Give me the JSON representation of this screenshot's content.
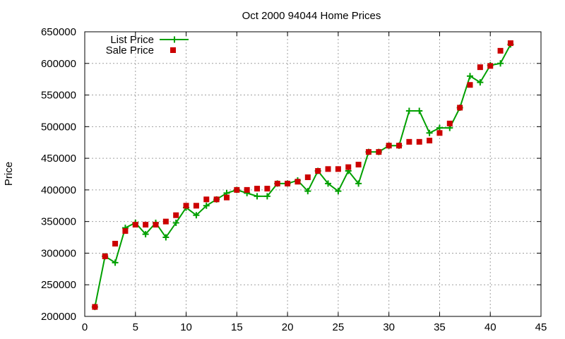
{
  "chart_data": {
    "type": "line",
    "title": "Oct 2000 94044 Home Prices",
    "xlabel": "",
    "ylabel": "Price",
    "xlim": [
      0,
      45
    ],
    "ylim": [
      200000,
      650000
    ],
    "x_ticks": [
      0,
      5,
      10,
      15,
      20,
      25,
      30,
      35,
      40,
      45
    ],
    "y_ticks": [
      200000,
      250000,
      300000,
      350000,
      400000,
      450000,
      500000,
      550000,
      600000,
      650000
    ],
    "grid": true,
    "legend_position": "top-left",
    "series": [
      {
        "name": "List Price",
        "style": "line+cross",
        "color": "#00a000",
        "x": [
          1,
          2,
          3,
          4,
          5,
          6,
          7,
          8,
          9,
          10,
          11,
          12,
          13,
          14,
          15,
          16,
          17,
          18,
          19,
          20,
          21,
          22,
          23,
          24,
          25,
          26,
          27,
          28,
          29,
          30,
          31,
          32,
          33,
          34,
          35,
          36,
          37,
          38,
          39,
          40,
          41,
          42
        ],
        "y": [
          215000,
          295000,
          285000,
          340000,
          348000,
          330000,
          348000,
          325000,
          348000,
          372000,
          360000,
          375000,
          385000,
          395000,
          400000,
          395000,
          390000,
          390000,
          410000,
          410000,
          415000,
          398000,
          430000,
          410000,
          398000,
          430000,
          410000,
          460000,
          460000,
          470000,
          470000,
          525000,
          525000,
          490000,
          498000,
          498000,
          530000,
          580000,
          570000,
          597000,
          600000,
          630000
        ]
      },
      {
        "name": "Sale Price",
        "style": "square",
        "color": "#cc0000",
        "x": [
          1,
          2,
          3,
          4,
          5,
          6,
          7,
          8,
          9,
          10,
          11,
          12,
          13,
          14,
          15,
          16,
          17,
          18,
          19,
          20,
          21,
          22,
          23,
          24,
          25,
          26,
          27,
          28,
          29,
          30,
          31,
          32,
          33,
          34,
          35,
          36,
          37,
          38,
          39,
          40,
          41,
          42
        ],
        "y": [
          215000,
          295000,
          315000,
          335000,
          345000,
          345000,
          345000,
          350000,
          360000,
          375000,
          375000,
          385000,
          385000,
          388000,
          400000,
          400000,
          402000,
          402000,
          410000,
          410000,
          413000,
          420000,
          430000,
          433000,
          433000,
          436000,
          440000,
          460000,
          460000,
          470000,
          470000,
          476000,
          476000,
          478000,
          490000,
          505000,
          530000,
          566000,
          594000,
          596000,
          620000,
          632000
        ]
      }
    ]
  }
}
